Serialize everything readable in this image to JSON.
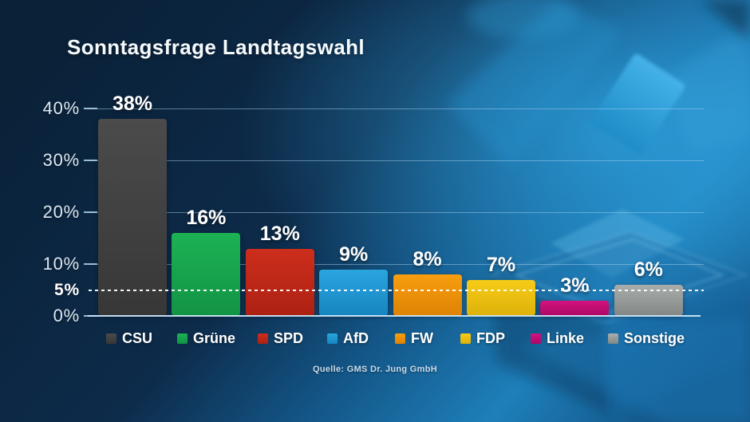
{
  "title": "Sonntagsfrage Landtagswahl",
  "source": "Quelle: GMS Dr. Jung GmbH",
  "chart_data": {
    "type": "bar",
    "title": "Sonntagsfrage Landtagswahl",
    "categories": [
      "CSU",
      "Grüne",
      "SPD",
      "AfD",
      "FW",
      "FDP",
      "Linke",
      "Sonstige"
    ],
    "values": [
      38,
      16,
      13,
      9,
      8,
      7,
      3,
      6
    ],
    "value_labels": [
      "38%",
      "16%",
      "13%",
      "9%",
      "8%",
      "7%",
      "3%",
      "6%"
    ],
    "bar_colors": [
      {
        "top": "#4b4b4b",
        "bottom": "#373737"
      },
      {
        "top": "#1cb254",
        "bottom": "#129345"
      },
      {
        "top": "#cd2e1d",
        "bottom": "#ad2112"
      },
      {
        "top": "#2aa5de",
        "bottom": "#1685c0"
      },
      {
        "top": "#f89e0f",
        "bottom": "#dd8203"
      },
      {
        "top": "#f6cc17",
        "bottom": "#ddb10a"
      },
      {
        "top": "#d2137f",
        "bottom": "#ad0765"
      },
      {
        "top": "#a9aeac",
        "bottom": "#828785"
      }
    ],
    "ylim": [
      0,
      42
    ],
    "grid": true,
    "legend_position": "bottom",
    "threshold_line": {
      "value": 5,
      "label": "5%",
      "style": "dashed"
    },
    "yticks": [
      {
        "label": "40%",
        "value": 40,
        "bold": false,
        "grid": true,
        "tick": true,
        "dashed": false
      },
      {
        "label": "30%",
        "value": 30,
        "bold": false,
        "grid": true,
        "tick": true,
        "dashed": false
      },
      {
        "label": "20%",
        "value": 20,
        "bold": false,
        "grid": true,
        "tick": true,
        "dashed": false
      },
      {
        "label": "10%",
        "value": 10,
        "bold": false,
        "grid": true,
        "tick": true,
        "dashed": false
      },
      {
        "label": "5%",
        "value": 5,
        "bold": true,
        "grid": false,
        "tick": false,
        "dashed": true
      },
      {
        "label": "0%",
        "value": 0,
        "bold": false,
        "grid": false,
        "tick": true,
        "dashed": false
      }
    ],
    "source": "Quelle: GMS Dr. Jung GmbH"
  }
}
